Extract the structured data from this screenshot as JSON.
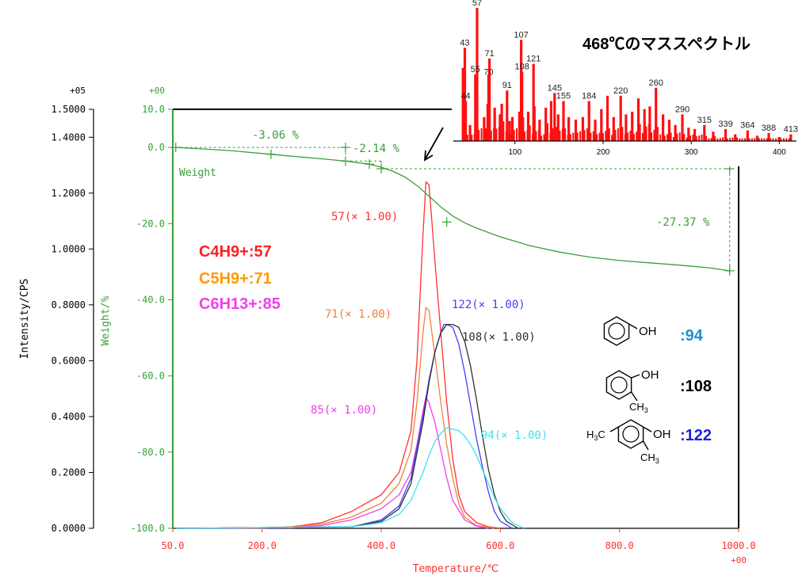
{
  "chart_data": [
    {
      "type": "line",
      "xlabel": "Temperature/℃",
      "x_exponent": "+00",
      "xlim": [
        50,
        1000
      ],
      "xticks": [
        "50.0",
        "200.0",
        "400.0",
        "600.0",
        "800.0",
        "1000.0"
      ],
      "ylabel": "Intensity/CPS",
      "y_exponent": "+05",
      "ylim": [
        0,
        1.5
      ],
      "yticks": [
        "0.0000",
        "0.2000",
        "0.4000",
        "0.6000",
        "0.8000",
        "1.0000",
        "1.2000",
        "1.4000",
        "1.5000"
      ],
      "y2label": "Weight/%",
      "y2_exponent": "+00",
      "y2lim": [
        -100,
        10
      ],
      "y2ticks": [
        "-100.0",
        "-80.0",
        "-60.0",
        "-40.0",
        "-20.0",
        "0.0",
        "10.0"
      ],
      "series": [
        {
          "name": "57(× 1.00)",
          "color": "#ff3030",
          "axis": "left",
          "x": [
            55,
            200,
            250,
            300,
            350,
            400,
            430,
            450,
            460,
            470,
            475,
            480,
            485,
            490,
            500,
            510,
            520,
            530,
            540,
            560,
            580,
            600
          ],
          "y": [
            0,
            0.002,
            0.005,
            0.02,
            0.06,
            0.12,
            0.2,
            0.35,
            0.6,
            1.05,
            1.24,
            1.23,
            1.1,
            0.96,
            0.7,
            0.45,
            0.25,
            0.12,
            0.06,
            0.02,
            0.005,
            0
          ]
        },
        {
          "name": "71(× 1.00)",
          "color": "#f08040",
          "axis": "left",
          "x": [
            55,
            200,
            250,
            300,
            350,
            400,
            430,
            450,
            460,
            470,
            475,
            480,
            490,
            500,
            510,
            520,
            530,
            540,
            560,
            590
          ],
          "y": [
            0,
            0.001,
            0.004,
            0.015,
            0.04,
            0.09,
            0.16,
            0.28,
            0.45,
            0.7,
            0.79,
            0.78,
            0.62,
            0.45,
            0.3,
            0.18,
            0.09,
            0.04,
            0.01,
            0
          ]
        },
        {
          "name": "85(× 1.00)",
          "color": "#ee40ee",
          "axis": "left",
          "x": [
            55,
            250,
            300,
            350,
            400,
            430,
            450,
            460,
            470,
            475,
            480,
            490,
            500,
            510,
            520,
            540,
            560,
            580
          ],
          "y": [
            0,
            0.002,
            0.01,
            0.03,
            0.07,
            0.12,
            0.2,
            0.3,
            0.42,
            0.47,
            0.45,
            0.38,
            0.28,
            0.18,
            0.1,
            0.03,
            0.008,
            0
          ]
        },
        {
          "name": "122(× 1.00)",
          "color": "#4040ff",
          "axis": "left",
          "x": [
            55,
            350,
            400,
            430,
            450,
            470,
            480,
            490,
            500,
            505,
            510,
            520,
            530,
            540,
            550,
            560,
            570,
            580,
            590,
            600,
            620
          ],
          "y": [
            0,
            0.005,
            0.03,
            0.08,
            0.18,
            0.4,
            0.53,
            0.63,
            0.7,
            0.73,
            0.73,
            0.72,
            0.66,
            0.56,
            0.44,
            0.32,
            0.22,
            0.13,
            0.06,
            0.025,
            0
          ]
        },
        {
          "name": "108(× 1.00)",
          "color": "#303030",
          "axis": "left",
          "x": [
            55,
            350,
            400,
            430,
            450,
            470,
            480,
            490,
            500,
            510,
            520,
            530,
            540,
            550,
            560,
            570,
            580,
            590,
            600,
            610,
            630
          ],
          "y": [
            0,
            0.005,
            0.025,
            0.07,
            0.16,
            0.38,
            0.52,
            0.63,
            0.7,
            0.73,
            0.73,
            0.72,
            0.67,
            0.58,
            0.46,
            0.33,
            0.21,
            0.12,
            0.06,
            0.025,
            0
          ]
        },
        {
          "name": "94(× 1.00)",
          "color": "#40e0f0",
          "axis": "left",
          "x": [
            55,
            350,
            400,
            430,
            450,
            470,
            480,
            490,
            500,
            510,
            520,
            530,
            540,
            550,
            560,
            570,
            580,
            590,
            600,
            620,
            640
          ],
          "y": [
            0,
            0.005,
            0.02,
            0.05,
            0.1,
            0.2,
            0.26,
            0.31,
            0.34,
            0.36,
            0.355,
            0.35,
            0.33,
            0.3,
            0.26,
            0.21,
            0.16,
            0.11,
            0.07,
            0.02,
            0
          ]
        },
        {
          "name": "Weight",
          "color": "#38a038",
          "axis": "right",
          "x": [
            55,
            100,
            150,
            200,
            250,
            300,
            340,
            380,
            400,
            420,
            440,
            460,
            480,
            500,
            520,
            540,
            560,
            600,
            650,
            700,
            750,
            800,
            850,
            900,
            950,
            985
          ],
          "y": [
            0,
            -0.4,
            -0.9,
            -1.6,
            -2.3,
            -3.0,
            -3.6,
            -4.4,
            -5.2,
            -6.3,
            -7.8,
            -10.0,
            -12.8,
            -15.6,
            -18.0,
            -19.8,
            -21.2,
            -23.5,
            -25.8,
            -27.5,
            -28.8,
            -29.7,
            -30.3,
            -30.9,
            -31.6,
            -32.4
          ]
        }
      ],
      "weight_steps": [
        {
          "label": "-3.06 %"
        },
        {
          "label": "-2.14 %"
        },
        {
          "label": "-27.37 %"
        }
      ],
      "weight_label": "Weight"
    },
    {
      "type": "bar",
      "title": "468℃のマススペクトル",
      "xlim": [
        30,
        415
      ],
      "xticks": [
        "100",
        "200",
        "300",
        "400"
      ],
      "ylim": [
        0,
        100
      ],
      "peaks": [
        {
          "mz": 41,
          "i": 55
        },
        {
          "mz": 43,
          "i": 70
        },
        {
          "mz": 44,
          "i": 30
        },
        {
          "mz": 49,
          "i": 12
        },
        {
          "mz": 55,
          "i": 50
        },
        {
          "mz": 57,
          "i": 100
        },
        {
          "mz": 65,
          "i": 18
        },
        {
          "mz": 69,
          "i": 28
        },
        {
          "mz": 70,
          "i": 50
        },
        {
          "mz": 71,
          "i": 62
        },
        {
          "mz": 77,
          "i": 25
        },
        {
          "mz": 83,
          "i": 20
        },
        {
          "mz": 85,
          "i": 28
        },
        {
          "mz": 91,
          "i": 38
        },
        {
          "mz": 94,
          "i": 15
        },
        {
          "mz": 97,
          "i": 18
        },
        {
          "mz": 105,
          "i": 22
        },
        {
          "mz": 107,
          "i": 76
        },
        {
          "mz": 108,
          "i": 52
        },
        {
          "mz": 109,
          "i": 18
        },
        {
          "mz": 115,
          "i": 22
        },
        {
          "mz": 121,
          "i": 58
        },
        {
          "mz": 122,
          "i": 26
        },
        {
          "mz": 128,
          "i": 16
        },
        {
          "mz": 135,
          "i": 25
        },
        {
          "mz": 141,
          "i": 30
        },
        {
          "mz": 145,
          "i": 36
        },
        {
          "mz": 149,
          "i": 20
        },
        {
          "mz": 155,
          "i": 30
        },
        {
          "mz": 161,
          "i": 18
        },
        {
          "mz": 169,
          "i": 16
        },
        {
          "mz": 177,
          "i": 18
        },
        {
          "mz": 184,
          "i": 30
        },
        {
          "mz": 191,
          "i": 16
        },
        {
          "mz": 198,
          "i": 24
        },
        {
          "mz": 205,
          "i": 34
        },
        {
          "mz": 212,
          "i": 18
        },
        {
          "mz": 220,
          "i": 34
        },
        {
          "mz": 226,
          "i": 20
        },
        {
          "mz": 233,
          "i": 22
        },
        {
          "mz": 240,
          "i": 32
        },
        {
          "mz": 247,
          "i": 24
        },
        {
          "mz": 253,
          "i": 26
        },
        {
          "mz": 260,
          "i": 40
        },
        {
          "mz": 268,
          "i": 20
        },
        {
          "mz": 275,
          "i": 16
        },
        {
          "mz": 282,
          "i": 12
        },
        {
          "mz": 290,
          "i": 20
        },
        {
          "mz": 297,
          "i": 10
        },
        {
          "mz": 304,
          "i": 9
        },
        {
          "mz": 315,
          "i": 12
        },
        {
          "mz": 325,
          "i": 7
        },
        {
          "mz": 339,
          "i": 9
        },
        {
          "mz": 350,
          "i": 5
        },
        {
          "mz": 364,
          "i": 8
        },
        {
          "mz": 375,
          "i": 4
        },
        {
          "mz": 388,
          "i": 6
        },
        {
          "mz": 400,
          "i": 3
        },
        {
          "mz": 413,
          "i": 5
        }
      ],
      "peak_labels": [
        {
          "text": "57",
          "mz": 57,
          "i": 100
        },
        {
          "text": "43",
          "mz": 43,
          "i": 70
        },
        {
          "text": "71",
          "mz": 71,
          "i": 62
        },
        {
          "text": "107",
          "mz": 107,
          "i": 76
        },
        {
          "text": "55",
          "mz": 55,
          "i": 50
        },
        {
          "text": "70",
          "mz": 70,
          "i": 48
        },
        {
          "text": "108",
          "mz": 108,
          "i": 52
        },
        {
          "text": "121",
          "mz": 121,
          "i": 58
        },
        {
          "text": "91",
          "mz": 91,
          "i": 38
        },
        {
          "text": "44",
          "mz": 44,
          "i": 30
        },
        {
          "text": "145",
          "mz": 145,
          "i": 36
        },
        {
          "text": "155",
          "mz": 155,
          "i": 30
        },
        {
          "text": "184",
          "mz": 184,
          "i": 30
        },
        {
          "text": "220",
          "mz": 220,
          "i": 34
        },
        {
          "text": "260",
          "mz": 260,
          "i": 40
        },
        {
          "text": "290",
          "mz": 290,
          "i": 20
        },
        {
          "text": "315",
          "mz": 315,
          "i": 12
        },
        {
          "text": "339",
          "mz": 339,
          "i": 9
        },
        {
          "text": "364",
          "mz": 364,
          "i": 8
        },
        {
          "text": "388",
          "mz": 388,
          "i": 6
        },
        {
          "text": "413",
          "mz": 413,
          "i": 5
        }
      ]
    }
  ],
  "ion_legend": [
    {
      "text": "C4H9+:57",
      "color": "#ff2020"
    },
    {
      "text": "C5H9+:71",
      "color": "#ff9900"
    },
    {
      "text": "C6H13+:85",
      "color": "#ee40ee"
    }
  ],
  "compounds": [
    {
      "label": ":94",
      "color": "#1e90d0",
      "oh": "OH"
    },
    {
      "label": ":108",
      "color": "#000000",
      "oh": "OH",
      "sub": "CH3"
    },
    {
      "label": ":122",
      "color": "#2020e0",
      "oh": "OH",
      "sub": "CH3",
      "sub2": "H3C"
    }
  ]
}
